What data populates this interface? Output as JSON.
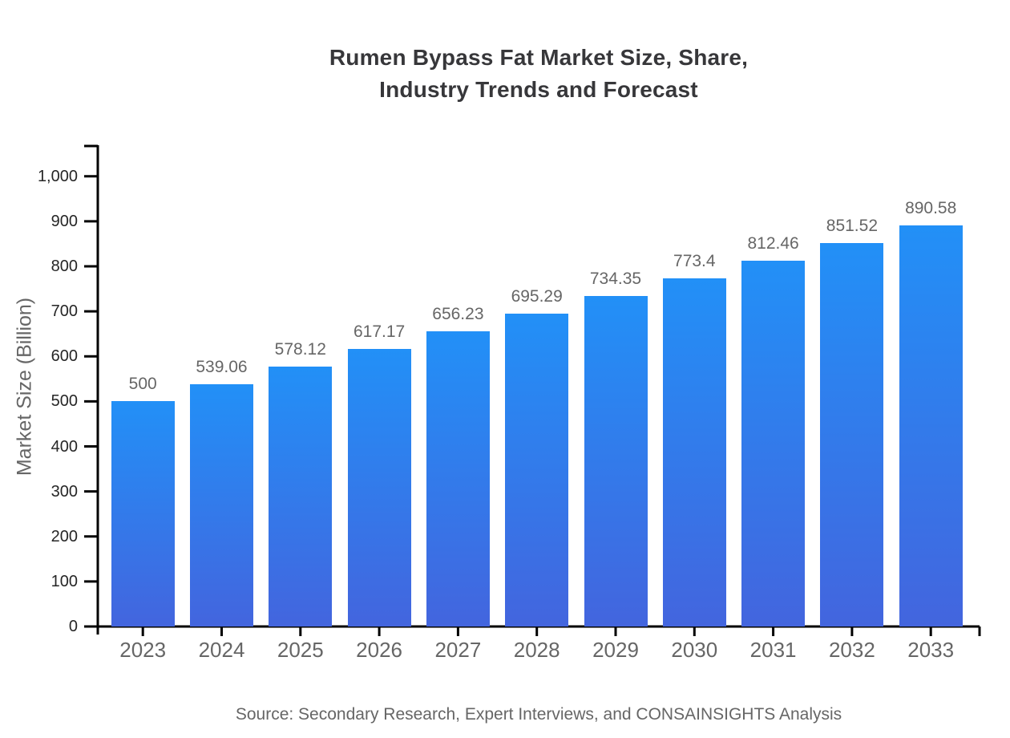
{
  "title": {
    "lines": [
      "Rumen Bypass Fat Market Size, Share,",
      "Industry Trends and Forecast"
    ]
  },
  "source_note": "Source: Secondary Research, Expert Interviews, and CONSAINSIGHTS Analysis",
  "chart_data": {
    "type": "bar",
    "title": "Rumen Bypass Fat Market Size, Share, Industry Trends and Forecast",
    "categories": [
      "2023",
      "2024",
      "2025",
      "2026",
      "2027",
      "2028",
      "2029",
      "2030",
      "2031",
      "2032",
      "2033"
    ],
    "values": [
      500,
      539.06,
      578.12,
      617.17,
      656.23,
      695.29,
      734.35,
      773.4,
      812.46,
      851.52,
      890.58
    ],
    "value_labels": [
      "500",
      "539.06",
      "578.12",
      "617.17",
      "656.23",
      "695.29",
      "734.35",
      "773.4",
      "812.46",
      "851.52",
      "890.58"
    ],
    "xlabel": "",
    "ylabel": "Market Size (Billion)",
    "ylim": [
      0,
      1000
    ],
    "yticks": [
      0,
      100,
      200,
      300,
      400,
      500,
      600,
      700,
      800,
      900,
      1000
    ],
    "ytick_labels": [
      "0",
      "100",
      "200",
      "300",
      "400",
      "500",
      "600",
      "700",
      "800",
      "900",
      "1,000"
    ],
    "grid": false,
    "legend": false,
    "bar_color_top": "#2290f7",
    "bar_color_bottom": "#4365de",
    "axis_color": "#000000",
    "data_label_color": "#666666",
    "tick_label_color": "#262626"
  }
}
